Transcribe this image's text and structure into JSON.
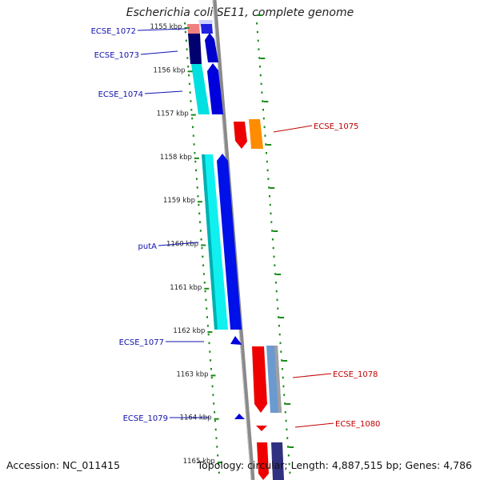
{
  "title": "Escherichia coli SE11, complete genome",
  "footer": {
    "accession": "Accession: NC_011415",
    "summary": "Topology: circular; Length: 4,887,515 bp; Genes: 4,786"
  },
  "colors": {
    "backbone": "#8a8a8a",
    "tick": "#1a8a1a",
    "forward_label": "#1010b0",
    "reverse_label": "#c00000"
  },
  "kbp_ticks": [
    "1155 kbp",
    "1156 kbp",
    "1157 kbp",
    "1158 kbp",
    "1159 kbp",
    "1160 kbp",
    "1161 kbp",
    "1162 kbp",
    "1163 kbp",
    "1164 kbp",
    "1165 kbp"
  ],
  "genes_left": [
    {
      "label": "ECSE_1072"
    },
    {
      "label": "ECSE_1073"
    },
    {
      "label": "ECSE_1074"
    },
    {
      "label": "putA"
    },
    {
      "label": "ECSE_1077"
    },
    {
      "label": "ECSE_1079"
    }
  ],
  "genes_right": [
    {
      "label": "ECSE_1075"
    },
    {
      "label": "ECSE_1078"
    },
    {
      "label": "ECSE_1080"
    }
  ]
}
